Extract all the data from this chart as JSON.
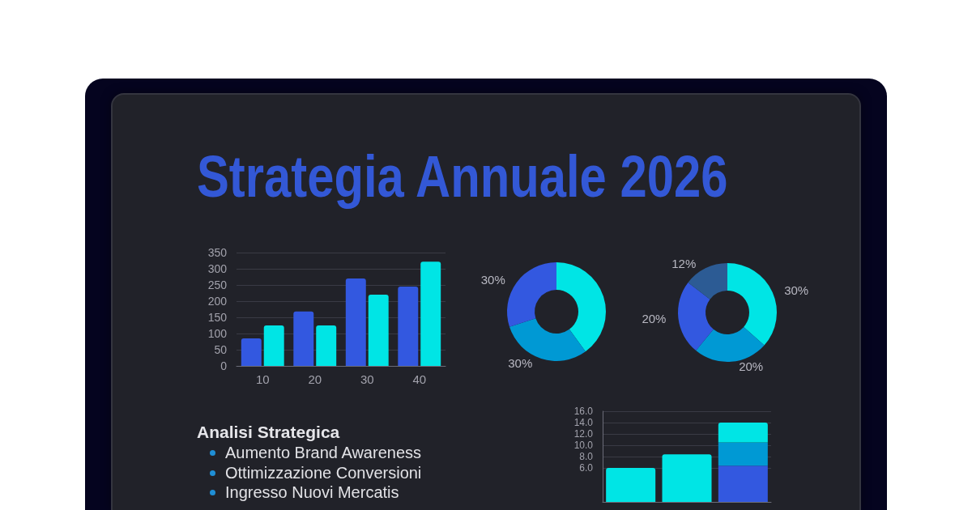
{
  "chart_data": [
    {
      "type": "other",
      "title": "Strategia Annuale 2026"
    },
    {
      "type": "bar",
      "categories": [
        "10",
        "20",
        "30",
        "40"
      ],
      "series": [
        {
          "color": "#3358e0",
          "values": [
            85,
            168,
            270,
            245
          ]
        },
        {
          "color": "#00e5e5",
          "values": [
            125,
            125,
            220,
            322
          ]
        }
      ],
      "ylim": [
        0,
        350
      ],
      "yticks": [
        0,
        50,
        100,
        150,
        200,
        250,
        300,
        350
      ],
      "grid": "y"
    },
    {
      "type": "donut",
      "categories": [
        null,
        null,
        null
      ],
      "values": [
        40,
        30,
        30
      ],
      "colors": [
        "#00e5e5",
        "#0099d4",
        "#3358e0"
      ],
      "value_labels": [
        null,
        "30%",
        "30%"
      ]
    },
    {
      "type": "donut",
      "categories": [
        null,
        null,
        null,
        null
      ],
      "values": [
        30,
        20,
        20,
        12
      ],
      "colors": [
        "#00e5e5",
        "#0099d4",
        "#3358e0",
        "#2c5b94"
      ],
      "value_labels": [
        "30%",
        "20%",
        "20%",
        "12%"
      ]
    },
    {
      "type": "other",
      "title": "Analisi Strategica",
      "annotations": [
        "Aumento Brand Awareness",
        "Ottimizzazione Conversioni",
        "Ingresso Nuovi Mercatis"
      ]
    },
    {
      "type": "bar",
      "stacked": true,
      "categories": [
        null,
        null,
        null
      ],
      "series": [
        {
          "color": "#3358e0",
          "values": [
            null,
            null,
            6.4
          ]
        },
        {
          "color": "#0099d4",
          "values": [
            null,
            null,
            4.1
          ]
        },
        {
          "color": "#00e5e5",
          "values": [
            6.0,
            8.4,
            3.5
          ]
        }
      ],
      "ylim": [
        0,
        16
      ],
      "yticks": [
        {
          "value": 6,
          "label": "6.0"
        },
        {
          "value": 8,
          "label": "8.0"
        },
        {
          "value": 10,
          "label": "10.0"
        },
        {
          "value": 12,
          "label": "12.0"
        },
        {
          "value": 14,
          "label": "14.0"
        },
        {
          "value": 16,
          "label": "16.0"
        }
      ],
      "grid": "y",
      "tick_labels": "y"
    }
  ]
}
